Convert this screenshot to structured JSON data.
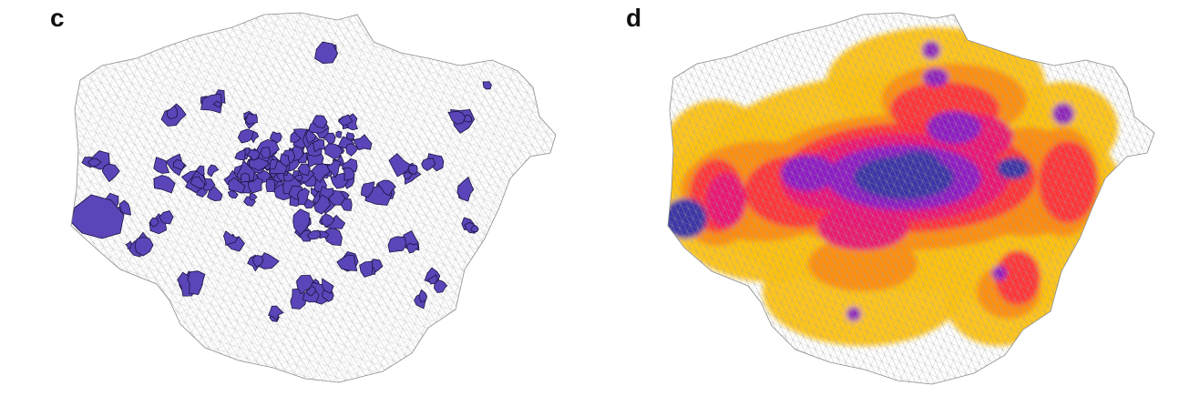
{
  "panels": [
    {
      "label": "c"
    },
    {
      "label": "d"
    }
  ],
  "colors": {
    "background": "#ffffff",
    "boundary_line": "#a8a8a8",
    "selected_fill": "#5b45b8",
    "selected_edge": "#1a1440",
    "heat_high": "#3a35a6",
    "heat_upper": "#8a1fc6",
    "heat_mid": "#e8127a",
    "heat_lower": "#ff2a3c",
    "heat_edge": "#ff8a10",
    "heat_low": "#ffc20e"
  }
}
